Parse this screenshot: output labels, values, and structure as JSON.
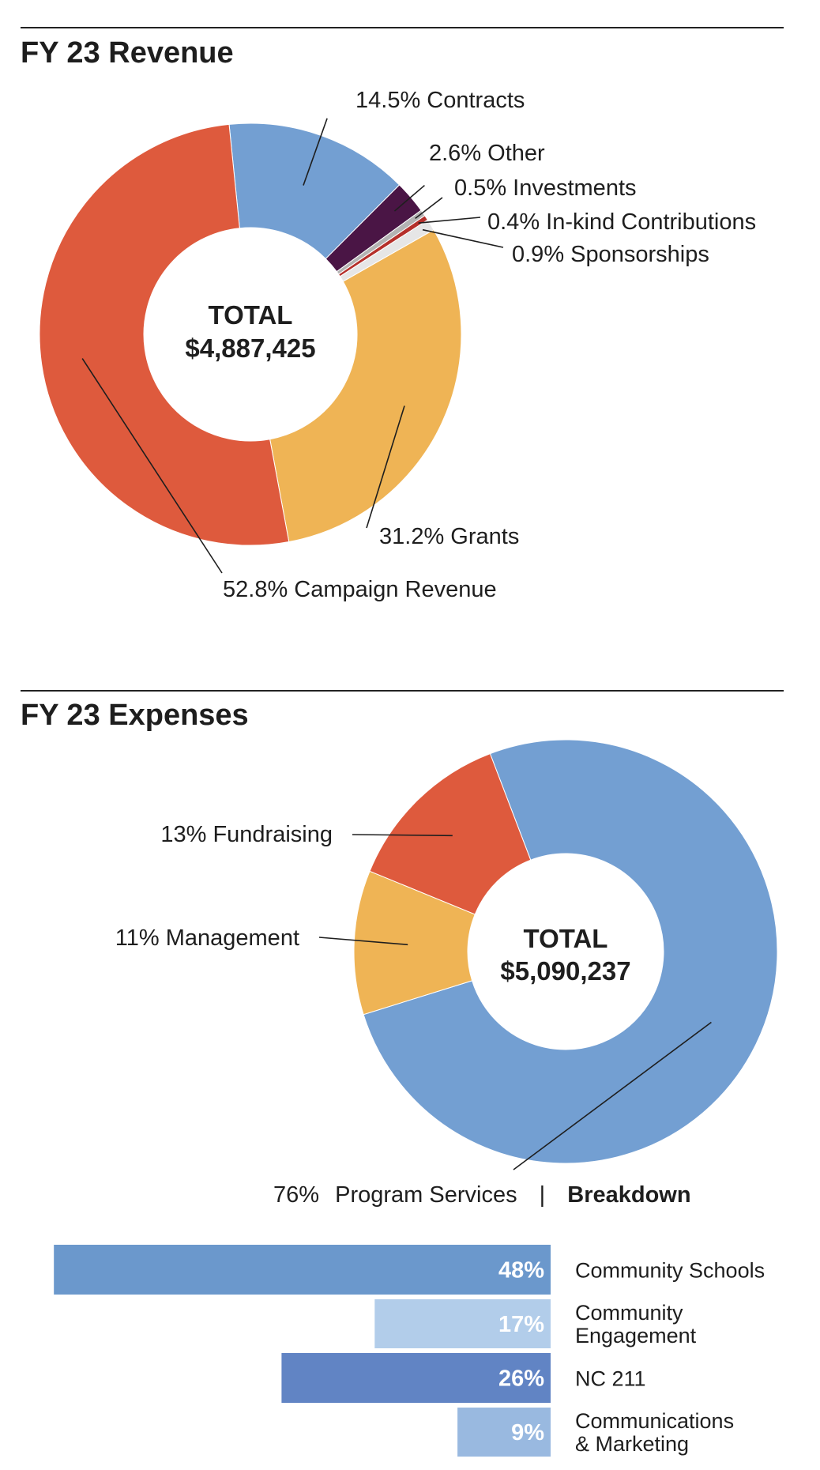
{
  "revenue": {
    "title": "FY 23 Revenue",
    "total_label": "TOTAL",
    "total_value": "$4,887,425"
  },
  "expenses": {
    "title": "FY 23 Expenses",
    "total_label": "TOTAL",
    "total_value": "$5,090,237"
  },
  "program_line": {
    "pct": "76%",
    "label": "Program Services",
    "separator": "|",
    "breakdown": "Breakdown"
  },
  "chart_data": [
    {
      "type": "pie",
      "style": "donut",
      "title": "FY 23 Revenue",
      "center": "TOTAL $4,887,425",
      "slices": [
        {
          "label": "Contracts",
          "value": 14.5,
          "text": "14.5% Contracts",
          "color": "#739fd2"
        },
        {
          "label": "Other",
          "value": 2.6,
          "text": "2.6% Other",
          "color": "#4a1545"
        },
        {
          "label": "Investments",
          "value": 0.5,
          "text": "0.5% Investments",
          "color": "#b3b3b3"
        },
        {
          "label": "In-kind Contributions",
          "value": 0.4,
          "text": "0.4% In-kind Contributions",
          "color": "#b5302b"
        },
        {
          "label": "Sponsorships",
          "value": 0.9,
          "text": "0.9% Sponsorships",
          "color": "#e6e6e6"
        },
        {
          "label": "Grants",
          "value": 31.2,
          "text": "31.2% Grants",
          "color": "#efb455"
        },
        {
          "label": "Campaign Revenue",
          "value": 52.8,
          "text": "52.8% Campaign Revenue",
          "color": "#de5a3d"
        }
      ]
    },
    {
      "type": "pie",
      "style": "donut",
      "title": "FY 23 Expenses",
      "center": "TOTAL $5,090,237",
      "slices": [
        {
          "label": "Program Services",
          "value": 76,
          "text": "76% Program Services",
          "color": "#739fd2"
        },
        {
          "label": "Management",
          "value": 11,
          "text": "11%  Management",
          "color": "#efb455"
        },
        {
          "label": "Fundraising",
          "value": 13,
          "text": "13% Fundraising",
          "color": "#de5a3d"
        }
      ]
    },
    {
      "type": "bar",
      "orientation": "horizontal",
      "title": "Breakdown",
      "categories": [
        "Community Schools",
        "Community Engagement",
        "NC 211",
        "Communications & Marketing"
      ],
      "values": [
        48,
        17,
        26,
        9
      ],
      "value_labels": [
        "48%",
        "17%",
        "26%",
        "9%"
      ],
      "category_lines": [
        [
          "Community Schools"
        ],
        [
          "Community",
          "Engagement"
        ],
        [
          "NC 211"
        ],
        [
          "Communications",
          "& Marketing"
        ]
      ],
      "colors": [
        "#6b98cc",
        "#b2cdea",
        "#6184c4",
        "#99b9e0"
      ]
    }
  ]
}
